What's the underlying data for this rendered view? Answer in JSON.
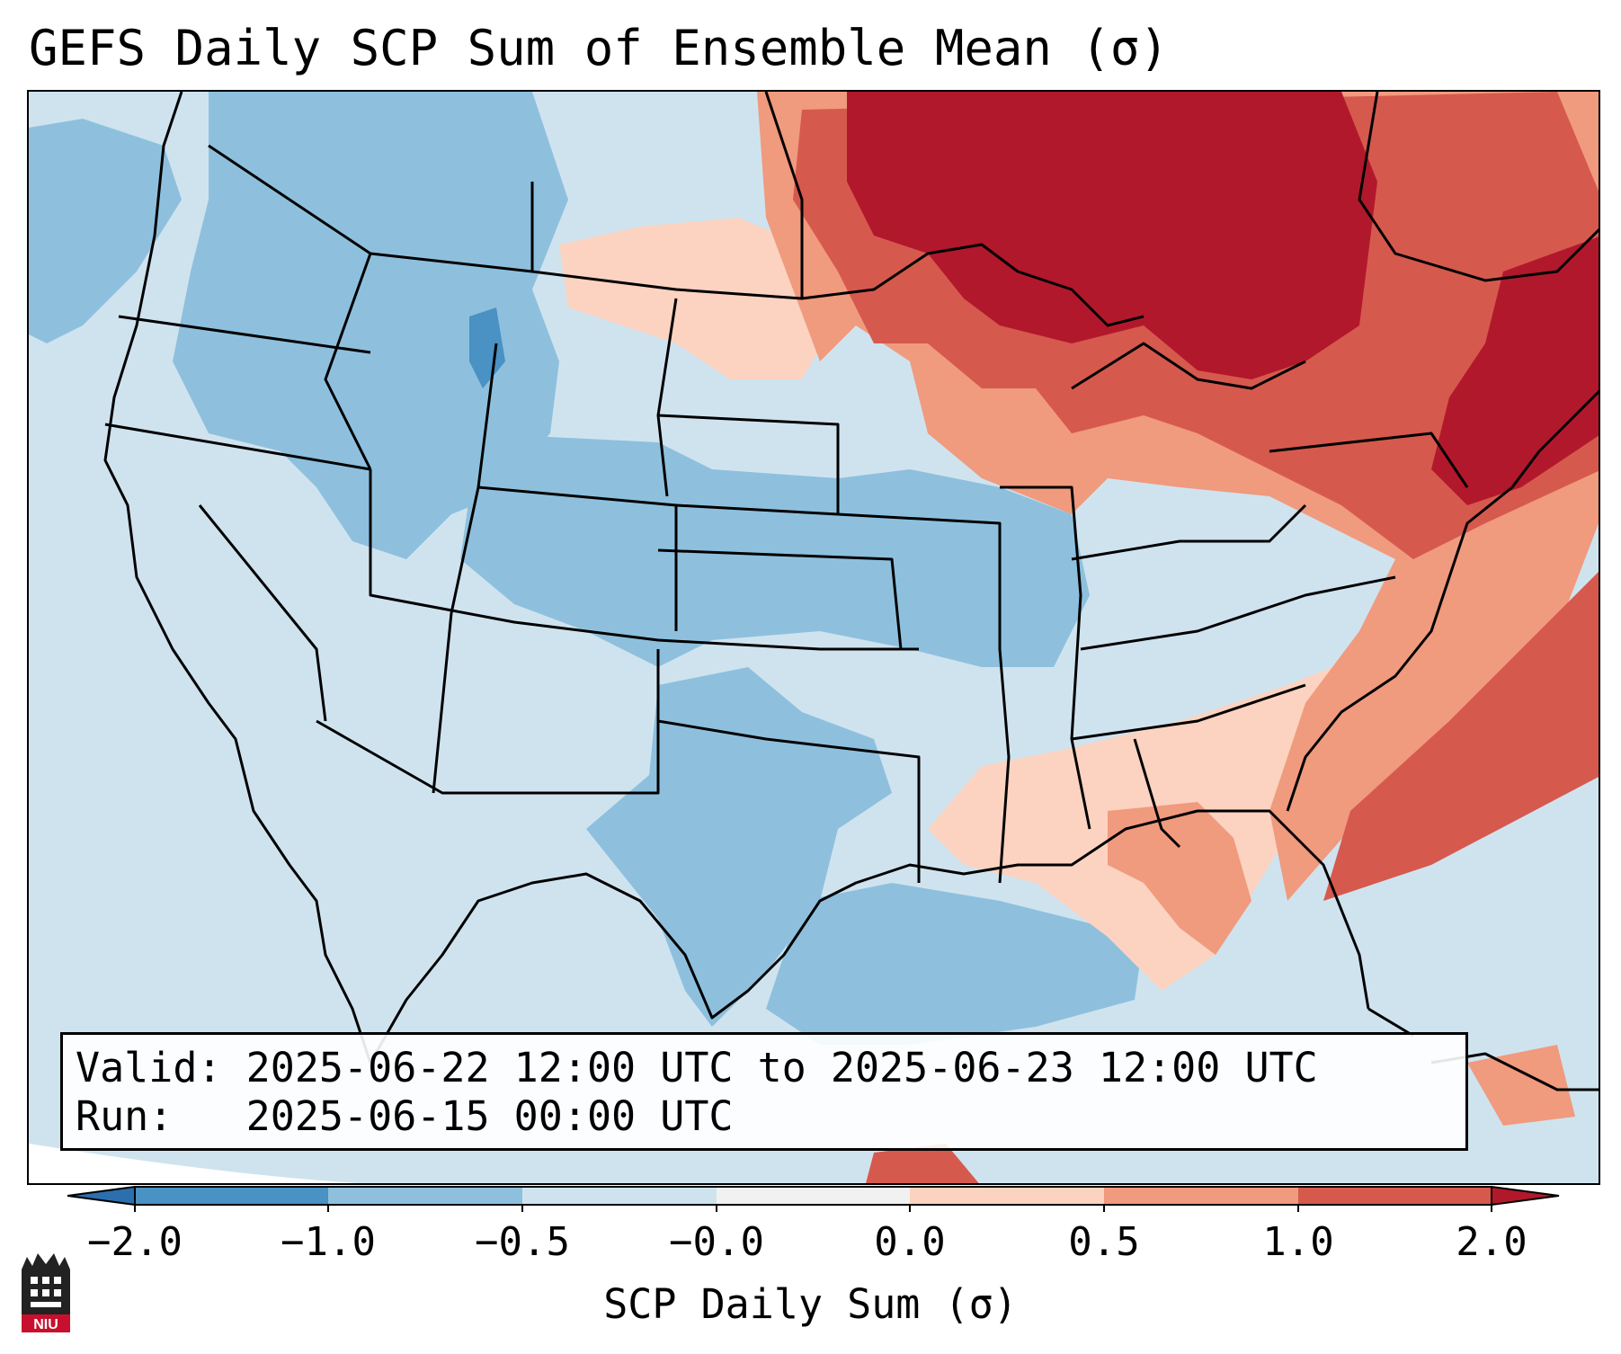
{
  "title": "GEFS Daily SCP Sum of Ensemble Mean (σ)",
  "info": {
    "valid_label": "Valid:",
    "valid_value": "2025-06-22 12:00 UTC to 2025-06-23 12:00 UTC",
    "run_label": "Run:  ",
    "run_value": "2025-06-15 00:00 UTC"
  },
  "colorbar": {
    "label": "SCP Daily Sum (σ)",
    "ticks": [
      "−2.0",
      "−1.0",
      "−0.5",
      "−0.0",
      "0.0",
      "0.5",
      "1.0",
      "2.0"
    ],
    "bin_colors": [
      "#4a91c4",
      "#8ec0de",
      "#cfe3ef",
      "#f1f1f1",
      "#fbd3c0",
      "#f09a7e",
      "#d6594e"
    ],
    "extend_low_color": "#2b6fae",
    "extend_high_color": "#b2182b"
  },
  "map": {
    "region": "Contiguous United States",
    "ocean_color": "#cfe3ef",
    "background_color": "#cfe3ef",
    "regions": [
      {
        "name": "pacific-nw-offshore",
        "level": "-0.5..-1.0",
        "color": "#8ec0de"
      },
      {
        "name": "northern-rockies",
        "level": "-0.5..-1.0",
        "color": "#8ec0de"
      },
      {
        "name": "wyoming-core",
        "level": "-1.0..-2.0",
        "color": "#4a91c4"
      },
      {
        "name": "central-plains",
        "level": "-0.5..-1.0",
        "color": "#8ec0de"
      },
      {
        "name": "texas",
        "level": "-0.5..-1.0",
        "color": "#8ec0de"
      },
      {
        "name": "gulf-of-mexico",
        "level": "-0.5..-1.0",
        "color": "#8ec0de"
      },
      {
        "name": "dakotas-light",
        "level": "0.0..0.5",
        "color": "#fbd3c0"
      },
      {
        "name": "southeast",
        "level": "0.0..0.5",
        "color": "#fbd3c0"
      },
      {
        "name": "upper-midwest",
        "level": "0.5..1.0",
        "color": "#f09a7e"
      },
      {
        "name": "atlantic-offshore",
        "level": "0.5..1.0",
        "color": "#f09a7e"
      },
      {
        "name": "florida-panhandle",
        "level": "0.5..1.0",
        "color": "#f09a7e"
      },
      {
        "name": "great-lakes",
        "level": "1.0..2.0",
        "color": "#d6594e"
      },
      {
        "name": "ontario-quebec",
        "level": ">2.0",
        "color": "#b2182b"
      },
      {
        "name": "new-england",
        "level": ">2.0",
        "color": "#b2182b"
      }
    ]
  },
  "logo": {
    "text": "NIU",
    "icon": "niu-logo-icon"
  }
}
